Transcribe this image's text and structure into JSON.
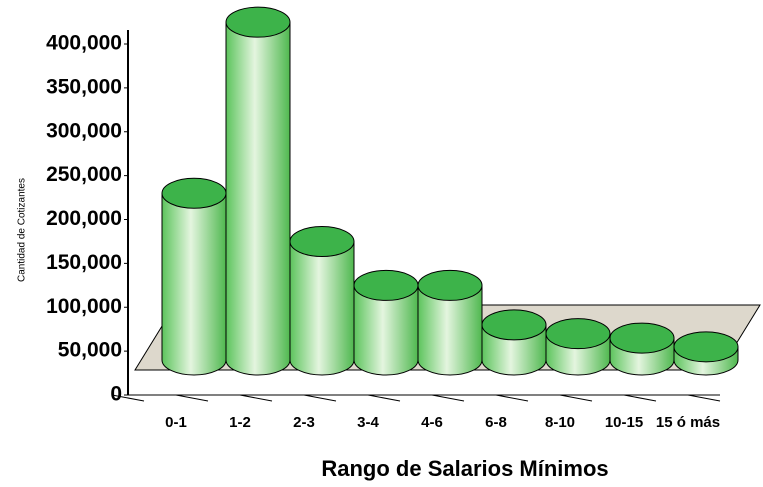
{
  "chart_data": {
    "type": "bar3d",
    "x_label": "Rango de Salarios Mínimos",
    "y_label": "Cantidad de Cotizantes",
    "categories": [
      "0-1",
      "1-2",
      "2-3",
      "3-4",
      "4-6",
      "6-8",
      "8-10",
      "10-15",
      "15 ó más"
    ],
    "values": [
      190000,
      385000,
      135000,
      85000,
      85000,
      40000,
      30000,
      25000,
      15000
    ],
    "color": "#3db34a",
    "ylim": [
      0,
      400000
    ],
    "yticks": [
      0,
      {
        "value": 50000,
        "label": "50,000"
      },
      {
        "value": 100000,
        "label": "100,000"
      },
      {
        "value": 150000,
        "label": "150,000"
      },
      {
        "value": 200000,
        "label": "200,000"
      },
      {
        "value": 250000,
        "label": "250,000"
      },
      {
        "value": 300000,
        "label": "300,000"
      },
      {
        "value": 350000,
        "label": "350,000"
      },
      {
        "value": 400000,
        "label": "400,000"
      }
    ]
  }
}
